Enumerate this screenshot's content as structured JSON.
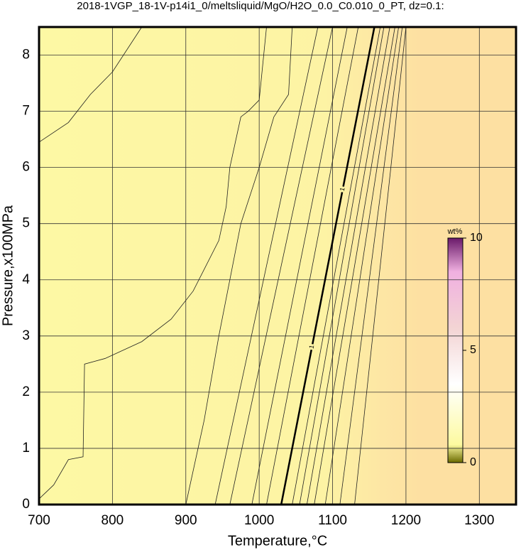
{
  "chart_data": {
    "type": "contour",
    "title": "2018-1VGP_18-1V-p14i1_0/meltsliquid/MgO/H2O_0.0_C0.010_0_PT, dz=0.1:",
    "xlabel": "Temperature,°C",
    "ylabel": "Pressure,x100MPa",
    "xlim": [
      700,
      1350
    ],
    "ylim": [
      0,
      8.5
    ],
    "xticks": [
      700,
      800,
      900,
      1000,
      1100,
      1200,
      1300
    ],
    "yticks": [
      0,
      1,
      2,
      3,
      4,
      5,
      6,
      7,
      8
    ],
    "grid": true,
    "series": [
      {
        "color": "#000000",
        "width": 2.5,
        "label": "1",
        "x": [
          1030,
          1157
        ],
        "y": [
          0,
          8.5
        ]
      },
      {
        "color": "#222222",
        "width": 0.8,
        "x": [
          700,
          740,
          770,
          800,
          840
        ],
        "y": [
          6.45,
          6.8,
          7.3,
          7.7,
          8.5
        ]
      },
      {
        "color": "#222222",
        "width": 0.8,
        "x": [
          700,
          720,
          740,
          760,
          762,
          790,
          840,
          880,
          910,
          945,
          955,
          960,
          975,
          985,
          1000,
          1010
        ],
        "y": [
          0.1,
          0.35,
          0.8,
          0.85,
          2.5,
          2.6,
          2.9,
          3.3,
          3.8,
          4.7,
          5.3,
          6,
          6.9,
          7.0,
          7.2,
          8.5
        ]
      },
      {
        "color": "#222222",
        "width": 0.8,
        "x": [
          900,
          925,
          945,
          960,
          975,
          1000,
          1020,
          1040,
          1045
        ],
        "y": [
          0,
          1.5,
          3,
          4,
          5,
          6,
          6.9,
          7.3,
          8.5
        ]
      },
      {
        "color": "#222222",
        "width": 0.8,
        "x": [
          940,
          1080
        ],
        "y": [
          0,
          8.5
        ]
      },
      {
        "color": "#222222",
        "width": 0.8,
        "x": [
          960,
          1100
        ],
        "y": [
          0,
          8.5
        ]
      },
      {
        "color": "#222222",
        "width": 0.8,
        "x": [
          990,
          1120
        ],
        "y": [
          0,
          8.5
        ]
      },
      {
        "color": "#222222",
        "width": 0.8,
        "x": [
          1010,
          1135
        ],
        "y": [
          0,
          8.5
        ]
      },
      {
        "color": "#222222",
        "width": 0.8,
        "x": [
          1045,
          1165
        ],
        "y": [
          0,
          8.5
        ]
      },
      {
        "color": "#222222",
        "width": 0.8,
        "x": [
          1055,
          1170
        ],
        "y": [
          0,
          8.5
        ]
      },
      {
        "color": "#222222",
        "width": 0.8,
        "x": [
          1065,
          1178
        ],
        "y": [
          0,
          8.5
        ]
      },
      {
        "color": "#222222",
        "width": 0.8,
        "x": [
          1075,
          1185
        ],
        "y": [
          0,
          8.5
        ]
      },
      {
        "color": "#222222",
        "width": 0.8,
        "x": [
          1090,
          1190
        ],
        "y": [
          0,
          8.5
        ]
      },
      {
        "color": "#222222",
        "width": 0.8,
        "x": [
          1110,
          1195
        ],
        "y": [
          0,
          8.5
        ]
      },
      {
        "color": "#222222",
        "width": 0.8,
        "x": [
          1130,
          1200
        ],
        "y": [
          0,
          8.5
        ]
      }
    ],
    "colorbar": {
      "label": "wt%",
      "lim": [
        0,
        10
      ],
      "ticks": [
        0,
        5,
        10
      ]
    }
  }
}
